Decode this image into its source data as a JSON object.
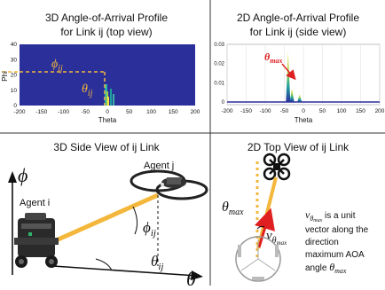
{
  "panels": {
    "tl": {
      "title_line1": "3D Angle-of-Arrival Profile",
      "title_line2": "for Link ij (top view)"
    },
    "tr": {
      "title_line1": "2D Angle-of-Arrival Profile",
      "title_line2": "for Link ij (side view)"
    },
    "bl": {
      "title": "3D Side View of ij Link"
    },
    "br": {
      "title": "2D Top View of ij Link"
    }
  },
  "heatmap": {
    "ylabel": "Phi",
    "xlabel": "Theta",
    "xticks": [
      "-200",
      "-150",
      "-100",
      "-50",
      "0",
      "50",
      "100",
      "150",
      "200"
    ],
    "yticks": [
      "0",
      "10",
      "20",
      "30",
      "40"
    ],
    "phi_label": "ϕ",
    "phi_sub": "ij",
    "theta_label": "θ",
    "theta_sub": "ij",
    "colors": {
      "background": "#2b2f9a",
      "dashed": "#f3b73c",
      "accent": "#f3b73c"
    }
  },
  "profile": {
    "xlabel": "Theta",
    "xticks": [
      "-200",
      "-150",
      "-100",
      "-50",
      "0",
      "50",
      "100",
      "150",
      "200"
    ],
    "yticks": [
      "0",
      "0.01",
      "0.02",
      "0.03"
    ],
    "ylim": [
      0,
      0.03
    ],
    "xlim": [
      -200,
      200
    ],
    "peaks": [
      {
        "theta": -40,
        "value": 0.026
      },
      {
        "theta": -30,
        "value": 0.007
      },
      {
        "theta": -10,
        "value": 0.004
      }
    ],
    "theta_max_label": "θ",
    "theta_max_sub": "max",
    "colors": {
      "label": "#e02020",
      "arrow": "#e02020",
      "base": "#2b2f9a"
    }
  },
  "side_view": {
    "phi_axis_label": "ϕ",
    "theta_axis_label": "θ",
    "agent_i": "Agent i",
    "agent_j": "Agent j",
    "phi_label": "ϕ",
    "phi_sub": "ij",
    "theta_label": "θ",
    "theta_sub": "ij",
    "colors": {
      "link": "#f3b73c"
    }
  },
  "top_view": {
    "theta_label": "θ",
    "theta_sub": "max",
    "v_label": "v",
    "v_sub": "θ",
    "v_subsub": "max",
    "desc_v": "v",
    "desc_sub": "θ",
    "desc_subsub": "max",
    "desc_line1": " is a unit",
    "desc_line2": "vector along the",
    "desc_line3": "direction",
    "desc_line4": "maximum AOA",
    "desc_line5_text": "angle ",
    "desc_line5_theta": "θ",
    "desc_line5_sub": "max",
    "colors": {
      "arrow": "#e02020",
      "link": "#f3b73c"
    }
  }
}
